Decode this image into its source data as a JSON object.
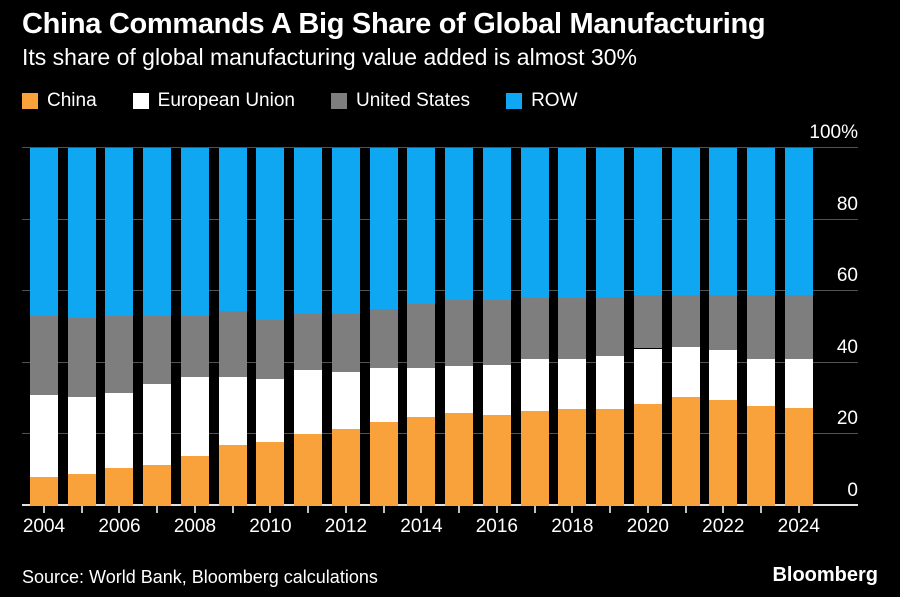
{
  "header": {
    "title": "China Commands A Big Share of Global Manufacturing",
    "subtitle": "Its share of global manufacturing value added is almost 30%"
  },
  "legend": [
    {
      "label": "China",
      "color": "#F9A13B"
    },
    {
      "label": "European Union",
      "color": "#FFFFFF"
    },
    {
      "label": "United States",
      "color": "#7E7E7E"
    },
    {
      "label": "ROW",
      "color": "#0FA7F2"
    }
  ],
  "chart_data": {
    "type": "bar",
    "stacked": true,
    "unit": "percent",
    "title": "China Commands A Big Share of Global Manufacturing",
    "subtitle": "Its share of global manufacturing value added is almost 30%",
    "categories": [
      "2004",
      "2005",
      "2006",
      "2007",
      "2008",
      "2009",
      "2010",
      "2011",
      "2012",
      "2013",
      "2014",
      "2015",
      "2016",
      "2017",
      "2018",
      "2019",
      "2020",
      "2021",
      "2022",
      "2023",
      "2024"
    ],
    "series": [
      {
        "name": "China",
        "color": "#F9A13B",
        "values": [
          8.0,
          9.0,
          10.5,
          11.5,
          14.0,
          17.0,
          18.0,
          20.0,
          21.5,
          23.5,
          25.0,
          26.0,
          25.5,
          26.5,
          27.0,
          27.0,
          28.5,
          30.5,
          29.5,
          28.0,
          27.5
        ]
      },
      {
        "name": "European Union",
        "color": "#FFFFFF",
        "values": [
          23.0,
          21.5,
          21.0,
          22.5,
          22.0,
          19.0,
          17.5,
          18.0,
          16.0,
          15.0,
          13.5,
          13.0,
          14.0,
          14.5,
          14.0,
          15.0,
          15.5,
          14.0,
          14.0,
          13.0,
          13.5
        ]
      },
      {
        "name": "United States",
        "color": "#7E7E7E",
        "values": [
          22.0,
          22.0,
          21.5,
          19.0,
          17.0,
          18.5,
          16.5,
          15.5,
          16.0,
          16.5,
          18.0,
          18.5,
          18.0,
          17.0,
          17.0,
          16.5,
          15.0,
          14.5,
          15.5,
          18.0,
          18.0
        ]
      },
      {
        "name": "ROW",
        "color": "#0FA7F2",
        "values": [
          47.0,
          47.5,
          47.0,
          47.0,
          47.0,
          45.5,
          48.0,
          46.5,
          46.5,
          45.0,
          43.5,
          42.5,
          42.5,
          42.0,
          42.0,
          41.5,
          41.0,
          41.0,
          41.0,
          41.0,
          41.0
        ]
      }
    ],
    "y_ticks": [
      0,
      20,
      40,
      60,
      80,
      100
    ],
    "y_top_label": "100%",
    "ylim": [
      0,
      100
    ],
    "x_label_every": 2,
    "grid": true,
    "legend_position": "top",
    "y_axis_side": "right"
  },
  "footer": {
    "source": "Source: World Bank, Bloomberg calculations",
    "brand": "Bloomberg"
  },
  "colors": {
    "background": "#000000",
    "text": "#FFFFFF",
    "gridline": "#525252",
    "baseline": "#E2E2E2",
    "tick": "#C0C0C0"
  }
}
